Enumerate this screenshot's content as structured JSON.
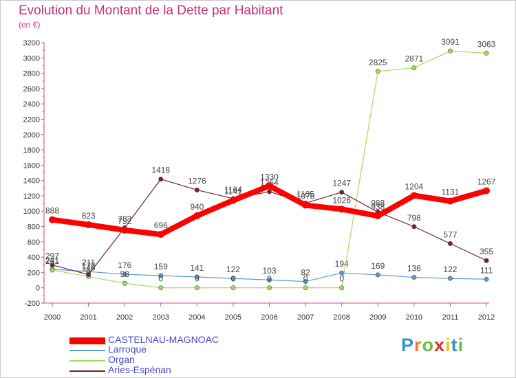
{
  "title": "Evolution du Montant de la Dette par Habitant",
  "subtitle": "(en €)",
  "logo": "Proxiti",
  "chart_data": {
    "type": "line",
    "title": "Evolution du Montant de la Dette par Habitant",
    "subtitle": "(en €)",
    "categories": [
      "2000",
      "2001",
      "2002",
      "2003",
      "2004",
      "2005",
      "2006",
      "2007",
      "2008",
      "2009",
      "2010",
      "2011",
      "2012"
    ],
    "ylim": [
      -200,
      3200
    ],
    "yticks": [
      -200,
      0,
      200,
      400,
      600,
      800,
      1000,
      1200,
      1400,
      1600,
      1800,
      2000,
      2200,
      2400,
      2600,
      2800,
      3000,
      3200
    ],
    "grid": false,
    "legend_position": "bottom-left",
    "series": [
      {
        "name": "CASTELNAU-MAGNOAC",
        "color": "#ff0000",
        "values": [
          888,
          823,
          752,
          696,
          940,
          1141,
          1330,
          1078,
          1026,
          938,
          1204,
          1131,
          1267
        ]
      },
      {
        "name": "Larroque",
        "color": "#5b9bd5",
        "values": [
          241,
          211,
          176,
          159,
          141,
          122,
          103,
          82,
          194,
          169,
          136,
          122,
          111
        ]
      },
      {
        "name": "Organ",
        "color": "#9ede5b",
        "values": [
          231,
          146,
          58,
          0,
          0,
          0,
          0,
          0,
          0,
          2825,
          2871,
          3091,
          3063
        ]
      },
      {
        "name": "Aries-Espénan",
        "color": "#7b1f2a",
        "values": [
          297,
          172,
          783,
          1418,
          1276,
          1164,
          1254,
          1105,
          1247,
          988,
          798,
          577,
          355
        ]
      }
    ],
    "legend": [
      "CASTELNAU-MAGNOAC",
      "Larroque",
      "Organ",
      "Aries-Espénan"
    ]
  }
}
